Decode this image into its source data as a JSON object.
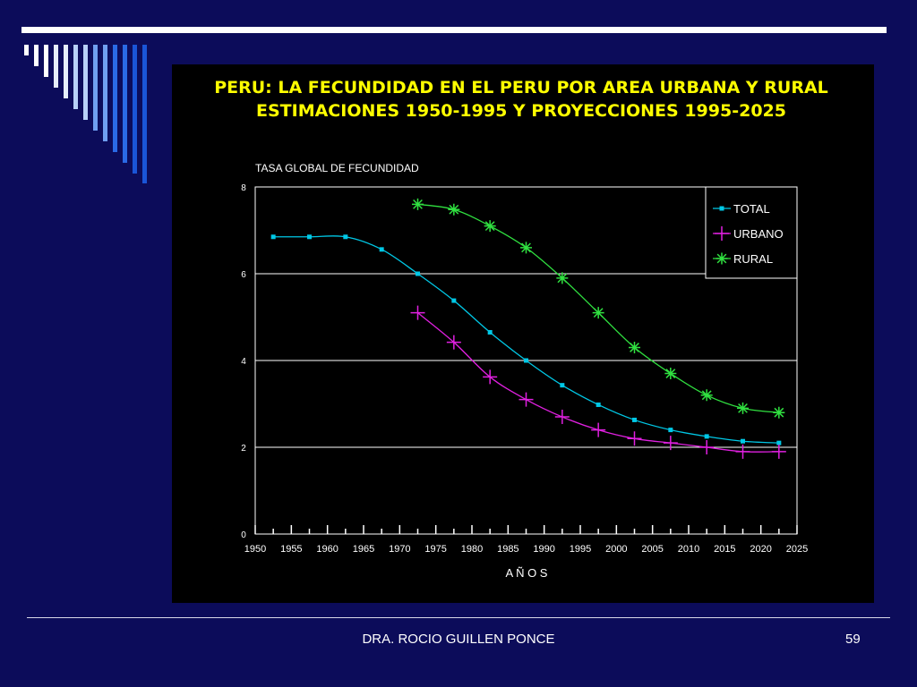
{
  "slide": {
    "footer_author": "DRA. ROCIO GUILLEN PONCE",
    "page_number": "59",
    "accent_colors": [
      "#ffffff",
      "#e6eefc",
      "#b7d0f8",
      "#6f9ff0",
      "#2a6ae6",
      "#1a55d8"
    ]
  },
  "chart_data": {
    "type": "line",
    "title": "PERU: LA FECUNDIDAD EN EL PERU POR AREA URBANA Y RURAL",
    "subtitle": "ESTIMACIONES 1950-1995 Y PROYECCIONES 1995-2025",
    "ylabel": "TASA GLOBAL DE FECUNDIDAD",
    "xlabel": "A Ñ O S",
    "xlim": [
      1950,
      2025
    ],
    "ylim": [
      0,
      8
    ],
    "x_ticks": [
      "1950",
      "1955",
      "1960",
      "1965",
      "1970",
      "1975",
      "1980",
      "1985",
      "1990",
      "1995",
      "2000",
      "2005",
      "2010",
      "2015",
      "2020",
      "2025"
    ],
    "y_ticks": [
      "0",
      "2",
      "4",
      "6",
      "8"
    ],
    "grid": "horizontal",
    "legend": "top-right",
    "series": [
      {
        "name": "TOTAL",
        "color": "#00c8e6",
        "marker": "square",
        "x": [
          1952.5,
          1957.5,
          1962.5,
          1967.5,
          1972.5,
          1977.5,
          1982.5,
          1987.5,
          1992.5,
          1997.5,
          2002.5,
          2007.5,
          2012.5,
          2017.5,
          2022.5
        ],
        "y": [
          6.85,
          6.85,
          6.85,
          6.56,
          6.0,
          5.38,
          4.65,
          4.0,
          3.43,
          2.98,
          2.63,
          2.4,
          2.25,
          2.14,
          2.1
        ]
      },
      {
        "name": "URBANO",
        "color": "#e020e0",
        "marker": "plus",
        "x": [
          1972.5,
          1977.5,
          1982.5,
          1987.5,
          1992.5,
          1997.5,
          2002.5,
          2007.5,
          2012.5,
          2017.5,
          2022.5
        ],
        "y": [
          5.1,
          4.42,
          3.62,
          3.1,
          2.7,
          2.4,
          2.2,
          2.1,
          2.0,
          1.9,
          1.9
        ]
      },
      {
        "name": "RURAL",
        "color": "#30e040",
        "marker": "asterisk",
        "x": [
          1972.5,
          1977.5,
          1982.5,
          1987.5,
          1992.5,
          1997.5,
          2002.5,
          2007.5,
          2012.5,
          2017.5,
          2022.5
        ],
        "y": [
          7.6,
          7.48,
          7.1,
          6.6,
          5.9,
          5.1,
          4.3,
          3.7,
          3.2,
          2.9,
          2.8
        ]
      }
    ]
  }
}
